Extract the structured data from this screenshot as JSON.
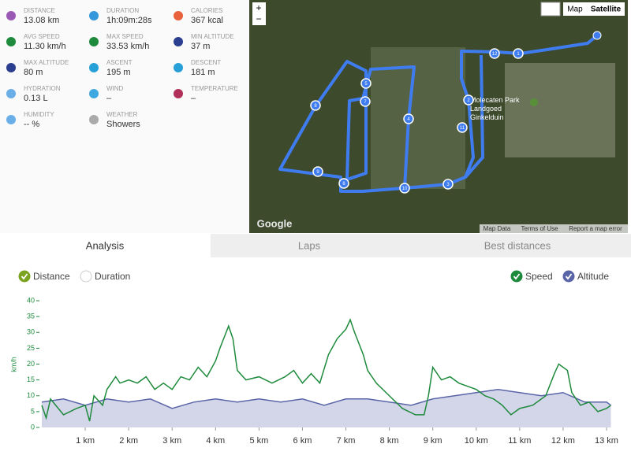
{
  "stats": [
    {
      "label": "DISTANCE",
      "value": "13.08 km"
    },
    {
      "label": "DURATION",
      "value": "1h:09m:28s"
    },
    {
      "label": "CALORIES",
      "value": "367 kcal"
    },
    {
      "label": "AVG SPEED",
      "value": "11.30 km/h"
    },
    {
      "label": "MAX SPEED",
      "value": "33.53 km/h"
    },
    {
      "label": "MIN ALTITUDE",
      "value": "37 m"
    },
    {
      "label": "MAX ALTITUDE",
      "value": "80 m"
    },
    {
      "label": "ASCENT",
      "value": "195 m"
    },
    {
      "label": "DESCENT",
      "value": "181 m"
    },
    {
      "label": "HYDRATION",
      "value": "0.13 L"
    },
    {
      "label": "WIND",
      "value": "–"
    },
    {
      "label": "TEMPERATURE",
      "value": "–"
    },
    {
      "label": "HUMIDITY",
      "value": "-- %"
    },
    {
      "label": "WEATHER",
      "value": "Showers"
    }
  ],
  "map": {
    "zoom_in": "+",
    "zoom_out": "−",
    "map_button": "Map",
    "satellite_button": "Satellite",
    "place": "Molecaten Park Landgoed Ginkelduin",
    "logo": "Google",
    "footer": [
      "Map Data",
      "Terms of Use",
      "Report a map error"
    ],
    "markers": [
      "1",
      "2",
      "3",
      "4",
      "5",
      "6",
      "7",
      "8",
      "9",
      "10",
      "11",
      "12"
    ]
  },
  "tabs": [
    "Analysis",
    "Laps",
    "Best distances"
  ],
  "options": {
    "x_axis": [
      {
        "label": "Distance",
        "checked": true
      },
      {
        "label": "Duration",
        "checked": false
      }
    ],
    "series": [
      {
        "label": "Speed",
        "checked": true
      },
      {
        "label": "Altitude",
        "checked": true
      }
    ]
  },
  "chart_data": {
    "type": "line",
    "y_label": "km/h",
    "xlim": [
      0,
      13.2
    ],
    "ylim": [
      0,
      40
    ],
    "xticks": [
      {
        "value": 1,
        "label": "1 km"
      },
      {
        "value": 2,
        "label": "2 km"
      },
      {
        "value": 3,
        "label": "3 km"
      },
      {
        "value": 4,
        "label": "4 km"
      },
      {
        "value": 5,
        "label": "5 km"
      },
      {
        "value": 6,
        "label": "6 km"
      },
      {
        "value": 7,
        "label": "7 km"
      },
      {
        "value": 8,
        "label": "8 km"
      },
      {
        "value": 9,
        "label": "9 km"
      },
      {
        "value": 10,
        "label": "10 km"
      },
      {
        "value": 11,
        "label": "11 km"
      },
      {
        "value": 12,
        "label": "12 km"
      },
      {
        "value": 13,
        "label": "13 km"
      }
    ],
    "yticks": [
      0,
      5,
      10,
      15,
      20,
      25,
      30,
      35,
      40
    ],
    "series": [
      {
        "name": "Altitude",
        "color": "#5a65a8",
        "fill": "#c8cbe4",
        "x": [
          0,
          0.5,
          1,
          1.5,
          2,
          2.5,
          3,
          3.5,
          4,
          4.5,
          5,
          5.5,
          6,
          6.5,
          7,
          7.5,
          8,
          8.5,
          9,
          9.5,
          10,
          10.5,
          11,
          11.5,
          12,
          12.5,
          13,
          13.1
        ],
        "values": [
          8,
          9,
          7,
          9,
          8,
          9,
          6,
          8,
          9,
          8,
          9,
          8,
          9,
          7,
          9,
          9,
          8,
          7,
          9,
          10,
          11,
          12,
          11,
          10,
          11,
          8,
          8,
          7
        ]
      },
      {
        "name": "Speed",
        "color": "#1e8a3c",
        "x": [
          0,
          0.1,
          0.2,
          0.5,
          0.8,
          1.0,
          1.1,
          1.2,
          1.4,
          1.5,
          1.7,
          1.8,
          2.0,
          2.2,
          2.4,
          2.6,
          2.8,
          3.0,
          3.2,
          3.4,
          3.6,
          3.8,
          4.0,
          4.1,
          4.3,
          4.4,
          4.5,
          4.7,
          5.0,
          5.3,
          5.6,
          5.8,
          6.0,
          6.2,
          6.4,
          6.6,
          6.8,
          7.0,
          7.1,
          7.2,
          7.4,
          7.5,
          7.7,
          8.0,
          8.3,
          8.6,
          8.8,
          8.9,
          9.0,
          9.2,
          9.4,
          9.6,
          9.8,
          10.0,
          10.2,
          10.4,
          10.6,
          10.8,
          11.0,
          11.3,
          11.6,
          11.8,
          11.9,
          12.1,
          12.2,
          12.4,
          12.6,
          12.8,
          13.0,
          13.1
        ],
        "values": [
          7,
          3,
          9,
          4,
          6,
          7,
          2,
          10,
          7,
          12,
          16,
          14,
          15,
          14,
          16,
          12,
          14,
          12,
          16,
          15,
          19,
          16,
          21,
          25,
          32,
          28,
          18,
          15,
          16,
          14,
          16,
          18,
          14,
          17,
          14,
          23,
          28,
          31,
          34,
          30,
          23,
          18,
          14,
          10,
          6,
          4,
          4,
          10,
          19,
          15,
          16,
          14,
          13,
          12,
          10,
          9,
          7,
          4,
          6,
          7,
          10,
          17,
          20,
          18,
          11,
          7,
          8,
          5,
          6,
          7
        ]
      }
    ]
  }
}
